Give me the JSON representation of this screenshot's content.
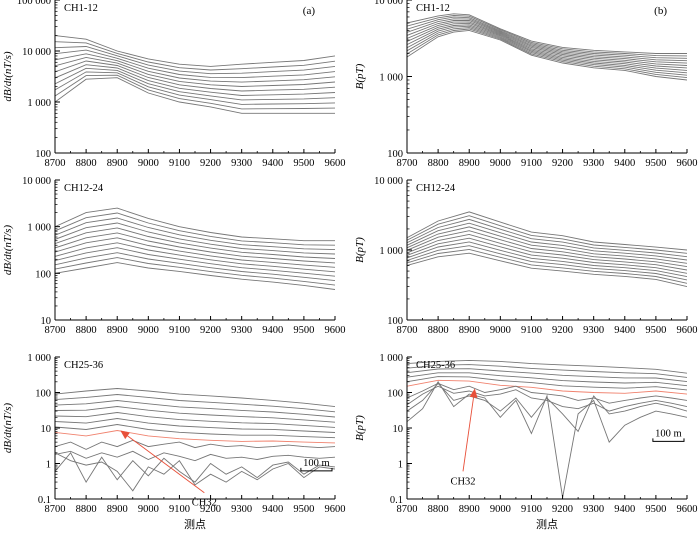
{
  "colors": {
    "curve": "#777777",
    "highlight": "#f0826e",
    "axis": "#000000",
    "arrow": "#e8503a"
  },
  "chart_data": [
    {
      "id": "a1",
      "type": "line",
      "panel_label": "(a)",
      "title": "CH1-12",
      "ylabel": "dB/dt(nT/s)",
      "xlabel": "",
      "log_y": true,
      "ylim": [
        100,
        100000
      ],
      "xlim": [
        8700,
        9600
      ],
      "x_ticks": [
        8700,
        8800,
        8900,
        9000,
        9100,
        9200,
        9300,
        9400,
        9500,
        9600
      ],
      "y_ticks": [
        100,
        1000,
        10000,
        100000
      ],
      "y_tick_labels": [
        "100",
        "1 000",
        "10 000",
        "100 000"
      ],
      "x": [
        8700,
        8800,
        8900,
        9000,
        9100,
        9200,
        9300,
        9400,
        9500,
        9600
      ],
      "series_count": 12,
      "top": [
        20000,
        17000,
        10000,
        7000,
        5500,
        5000,
        5500,
        6000,
        6500,
        8000
      ],
      "bottom": [
        1000,
        2800,
        3000,
        1500,
        1000,
        800,
        600,
        600,
        600,
        600
      ],
      "highlight_index": null,
      "scale_bar": null
    },
    {
      "id": "b1",
      "type": "line",
      "panel_label": "(b)",
      "title": "CH1-12",
      "ylabel": "B(pT)",
      "xlabel": "",
      "log_y": true,
      "ylim": [
        100,
        10000
      ],
      "xlim": [
        8700,
        9600
      ],
      "x_ticks": [
        8700,
        8800,
        8900,
        9000,
        9100,
        9200,
        9300,
        9400,
        9500,
        9600
      ],
      "y_ticks": [
        100,
        1000,
        10000
      ],
      "y_tick_labels": [
        "100",
        "1 000",
        "10 000"
      ],
      "x": [
        8700,
        8800,
        8850,
        8900,
        9000,
        9100,
        9200,
        9300,
        9400,
        9500,
        9600
      ],
      "series_count": 12,
      "top": [
        5000,
        6200,
        6600,
        6400,
        4200,
        2900,
        2400,
        2200,
        2100,
        2000,
        2000
      ],
      "bottom": [
        1800,
        3300,
        3800,
        4000,
        3000,
        1900,
        1500,
        1300,
        1200,
        1000,
        900
      ],
      "highlight_index": null,
      "scale_bar": null
    },
    {
      "id": "a2",
      "type": "line",
      "panel_label": "",
      "title": "CH12-24",
      "ylabel": "dB/dt(nT/s)",
      "xlabel": "",
      "log_y": true,
      "ylim": [
        10,
        10000
      ],
      "xlim": [
        8700,
        9600
      ],
      "x_ticks": [
        8700,
        8800,
        8900,
        9000,
        9100,
        9200,
        9300,
        9400,
        9500,
        9600
      ],
      "y_ticks": [
        10,
        100,
        1000,
        10000
      ],
      "y_tick_labels": [
        "10",
        "100",
        "1 000",
        "10 000"
      ],
      "x": [
        8700,
        8800,
        8900,
        9000,
        9100,
        9200,
        9300,
        9400,
        9500,
        9600
      ],
      "series_count": 12,
      "top": [
        1000,
        2000,
        2500,
        1500,
        1000,
        750,
        600,
        550,
        500,
        500
      ],
      "bottom": [
        100,
        130,
        170,
        130,
        110,
        90,
        75,
        65,
        55,
        45
      ],
      "highlight_index": null,
      "scale_bar": null
    },
    {
      "id": "b2",
      "type": "line",
      "panel_label": "",
      "title": "CH12-24",
      "ylabel": "B(pT)",
      "xlabel": "",
      "log_y": true,
      "ylim": [
        100,
        10000
      ],
      "xlim": [
        8700,
        9600
      ],
      "x_ticks": [
        8700,
        8800,
        8900,
        9000,
        9100,
        9200,
        9300,
        9400,
        9500,
        9600
      ],
      "y_ticks": [
        100,
        1000,
        10000
      ],
      "y_tick_labels": [
        "100",
        "1 000",
        "10 000"
      ],
      "x": [
        8700,
        8800,
        8900,
        9000,
        9100,
        9200,
        9300,
        9400,
        9500,
        9600
      ],
      "series_count": 12,
      "top": [
        1500,
        2600,
        3500,
        2500,
        1800,
        1600,
        1300,
        1200,
        1100,
        1000
      ],
      "bottom": [
        600,
        800,
        900,
        700,
        550,
        500,
        450,
        420,
        380,
        300
      ],
      "highlight_index": null,
      "scale_bar": null
    },
    {
      "id": "a3",
      "type": "line",
      "panel_label": "",
      "title": "CH25-36",
      "ylabel": "dB/dt(nT/s)",
      "xlabel": "测点",
      "log_y": true,
      "ylim": [
        0.1,
        1000
      ],
      "xlim": [
        8700,
        9600
      ],
      "x_ticks": [
        8700,
        8800,
        8900,
        9000,
        9100,
        9200,
        9300,
        9400,
        9500,
        9600
      ],
      "y_ticks": [
        0.1,
        1,
        10,
        100,
        1000
      ],
      "y_tick_labels": [
        "0.1",
        "1",
        "10",
        "100",
        "1 000"
      ],
      "x": [
        8700,
        8800,
        8900,
        9000,
        9100,
        9200,
        9300,
        9400,
        9500,
        9600
      ],
      "series_count": 12,
      "smooth_top": [
        90,
        110,
        130,
        110,
        90,
        80,
        70,
        60,
        50,
        40
      ],
      "smooth_bottom": [
        7.5,
        6,
        8.5,
        6,
        5,
        4.5,
        4.2,
        4.3,
        4,
        3.8
      ],
      "smooth_count": 8,
      "highlight_index": 7,
      "noisy_series": [
        {
          "x": [
            8700,
            8750,
            8800,
            8850,
            8900,
            8950,
            9000,
            9050,
            9100,
            9150,
            9200,
            9250,
            9300,
            9350,
            9400,
            9450,
            9500,
            9550,
            9600
          ],
          "values": [
            3,
            4,
            2.5,
            4,
            3,
            4.5,
            3,
            3.5,
            4,
            2.8,
            3.5,
            3,
            3.2,
            2.8,
            3,
            3.3,
            3,
            2.8,
            3
          ]
        },
        {
          "x": [
            8700,
            8750,
            8800,
            8850,
            8900,
            8950,
            9000,
            9050,
            9100,
            9150,
            9200,
            9250,
            9300,
            9350,
            9400,
            9450,
            9500,
            9550,
            9600
          ],
          "values": [
            1.8,
            2.2,
            1.4,
            2,
            1.5,
            2.2,
            1.3,
            2,
            1.6,
            1.2,
            1.8,
            1.4,
            1.5,
            1.3,
            1.6,
            1.7,
            1.5,
            1.4,
            1.5
          ]
        },
        {
          "x": [
            8700,
            8750,
            8800,
            8850,
            8900,
            8950,
            9000,
            9050,
            9100,
            9150,
            9200,
            9250,
            9300,
            9350,
            9400,
            9450,
            9500,
            9550,
            9600
          ],
          "values": [
            0.6,
            2,
            0.3,
            1.5,
            0.35,
            1.2,
            0.45,
            1.4,
            0.6,
            0.3,
            1,
            0.5,
            0.8,
            0.4,
            0.9,
            1.1,
            0.5,
            0.9,
            0.8
          ]
        },
        {
          "x": [
            8700,
            8750,
            8800,
            8850,
            8900,
            8950,
            9000,
            9050,
            9100,
            9150,
            9200,
            9250,
            9300,
            9350,
            9400,
            9450,
            9500,
            9550,
            9600
          ],
          "values": [
            2,
            1.2,
            0.9,
            1.1,
            0.6,
            0.17,
            0.8,
            0.5,
            1.2,
            0.25,
            0.5,
            0.3,
            0.6,
            0.35,
            0.7,
            1,
            0.4,
            0.8,
            0.7
          ]
        }
      ],
      "annotation": {
        "text": "CH32",
        "arrow_tip_x": 8910,
        "arrow_tip_y": 8.5,
        "label_x": 9180,
        "label_y": 0.15
      },
      "scale_bar": {
        "label": "100 m",
        "from_x": 9500,
        "to_x": 9600,
        "y": 0.62
      }
    },
    {
      "id": "b3",
      "type": "line",
      "panel_label": "",
      "title": "CH25-36",
      "ylabel": "B(pT)",
      "xlabel": "测点",
      "log_y": true,
      "ylim": [
        0.1,
        1000
      ],
      "xlim": [
        8700,
        9600
      ],
      "x_ticks": [
        8700,
        8800,
        8900,
        9000,
        9100,
        9200,
        9300,
        9400,
        9500,
        9600
      ],
      "y_ticks": [
        0.1,
        1,
        10,
        100,
        1000
      ],
      "y_tick_labels": [
        "0.1",
        "1",
        "10",
        "100",
        "1 000"
      ],
      "x": [
        8700,
        8800,
        8900,
        9000,
        9100,
        9200,
        9300,
        9400,
        9500,
        9600
      ],
      "series_count": 12,
      "smooth_top": [
        650,
        750,
        800,
        750,
        650,
        600,
        550,
        500,
        450,
        350
      ],
      "smooth_bottom": [
        150,
        220,
        210,
        160,
        140,
        110,
        100,
        95,
        110,
        90
      ],
      "smooth_count": 6,
      "highlight_index": 5,
      "noisy_series": [
        {
          "x": [
            8700,
            8750,
            8800,
            8850,
            8900,
            8950,
            9000,
            9050,
            9100,
            9150,
            9200,
            9250,
            9300,
            9350,
            9400,
            9450,
            9500,
            9550,
            9600
          ],
          "values": [
            70,
            110,
            180,
            120,
            150,
            100,
            120,
            150,
            100,
            90,
            80,
            60,
            70,
            50,
            60,
            70,
            80,
            70,
            60
          ]
        },
        {
          "x": [
            8700,
            8750,
            8800,
            8850,
            8900,
            8950,
            9000,
            9050,
            9100,
            9150,
            9200,
            9250,
            9300,
            9350,
            9400,
            9450,
            9500,
            9550,
            9600
          ],
          "values": [
            45,
            90,
            150,
            95,
            110,
            80,
            90,
            120,
            70,
            60,
            40,
            35,
            50,
            30,
            40,
            50,
            60,
            50,
            40
          ]
        },
        {
          "x": [
            8700,
            8750,
            8800,
            8850,
            8900,
            8950,
            9000,
            9050,
            9100,
            9150,
            9200,
            9250,
            9300,
            9350,
            9400,
            9450,
            9500,
            9550,
            9600
          ],
          "values": [
            30,
            60,
            180,
            60,
            80,
            60,
            30,
            70,
            20,
            70,
            25,
            8,
            80,
            25,
            30,
            40,
            50,
            40,
            30
          ]
        },
        {
          "x": [
            8700,
            8750,
            8800,
            8850,
            8900,
            8950,
            9000,
            9050,
            9100,
            9150,
            9200,
            9250,
            9300,
            9350,
            9400,
            9450,
            9500,
            9550,
            9600
          ],
          "values": [
            15,
            35,
            200,
            40,
            90,
            70,
            20,
            60,
            7,
            80,
            0.11,
            25,
            60,
            4,
            12,
            20,
            30,
            25,
            20
          ]
        }
      ],
      "annotation": {
        "text": "CH32",
        "arrow_tip_x": 8918,
        "arrow_tip_y": 130,
        "label_x": 8880,
        "label_y": 0.6
      },
      "scale_bar": {
        "label": "100 m",
        "from_x": 9500,
        "to_x": 9600,
        "y": 4.2
      }
    }
  ]
}
